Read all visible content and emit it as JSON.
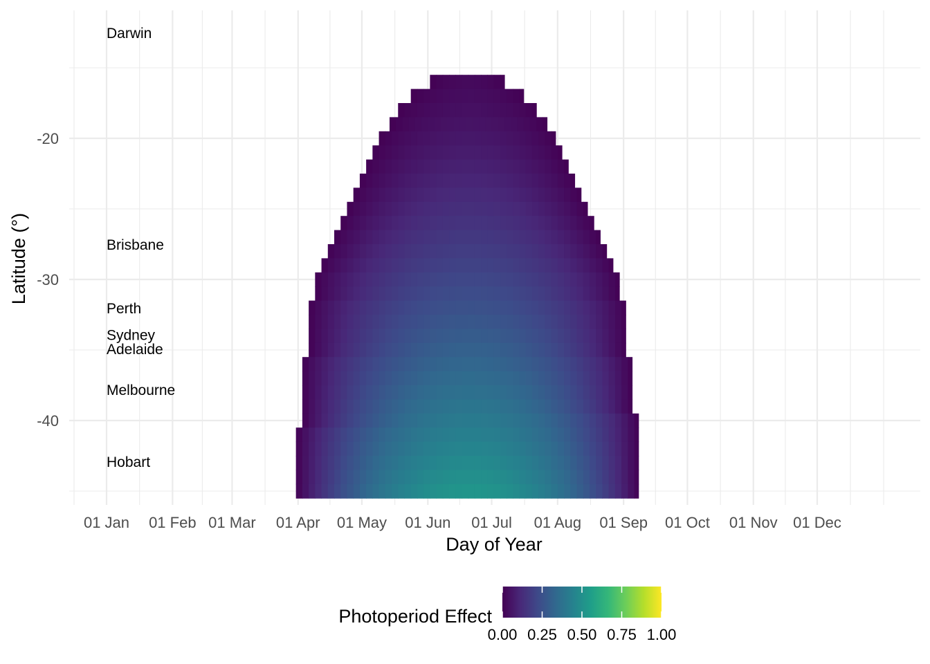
{
  "chart_data": {
    "type": "heatmap",
    "title": "",
    "xlabel": "Day of Year",
    "ylabel": "Latitude (°)",
    "x_tick_labels": [
      "01 Jan",
      "01 Feb",
      "01 Mar",
      "01 Apr",
      "01 May",
      "01 Jun",
      "01 Jul",
      "01 Aug",
      "01 Sep",
      "01 Oct",
      "01 Nov",
      "01 Dec"
    ],
    "x_tick_days": [
      1,
      32,
      60,
      91,
      121,
      152,
      182,
      213,
      244,
      274,
      305,
      335
    ],
    "y_ticks": [
      -20,
      -30,
      -40
    ],
    "y_tick_labels": [
      "-20",
      "-30",
      "-40"
    ],
    "xlim_days": [
      -15,
      380
    ],
    "ylim": [
      -45.5,
      -12.5
    ],
    "grid": true,
    "heatmap": {
      "lat_min": -45,
      "lat_max": -15,
      "lat_step": 1,
      "season_edges": [
        {
          "lat": -16,
          "start_day": 153,
          "end_day": 188
        },
        {
          "lat": -17,
          "start_day": 144,
          "end_day": 197
        },
        {
          "lat": -18,
          "start_day": 138,
          "end_day": 203
        },
        {
          "lat": -19,
          "start_day": 134,
          "end_day": 208
        },
        {
          "lat": -20,
          "start_day": 129,
          "end_day": 212
        },
        {
          "lat": -21,
          "start_day": 126,
          "end_day": 215
        },
        {
          "lat": -22,
          "start_day": 123,
          "end_day": 218
        },
        {
          "lat": -23,
          "start_day": 120,
          "end_day": 221
        },
        {
          "lat": -24,
          "start_day": 117,
          "end_day": 224
        },
        {
          "lat": -25,
          "start_day": 114,
          "end_day": 227
        },
        {
          "lat": -26,
          "start_day": 111,
          "end_day": 230
        },
        {
          "lat": -27,
          "start_day": 108,
          "end_day": 233
        },
        {
          "lat": -28,
          "start_day": 105,
          "end_day": 236
        },
        {
          "lat": -29,
          "start_day": 102,
          "end_day": 239
        },
        {
          "lat": -30,
          "start_day": 99,
          "end_day": 242
        },
        {
          "lat": -31,
          "start_day": 99,
          "end_day": 242
        },
        {
          "lat": -32,
          "start_day": 96,
          "end_day": 245
        },
        {
          "lat": -33,
          "start_day": 96,
          "end_day": 245
        },
        {
          "lat": -34,
          "start_day": 96,
          "end_day": 245
        },
        {
          "lat": -35,
          "start_day": 96,
          "end_day": 245
        },
        {
          "lat": -36,
          "start_day": 93,
          "end_day": 248
        },
        {
          "lat": -37,
          "start_day": 93,
          "end_day": 248
        },
        {
          "lat": -38,
          "start_day": 93,
          "end_day": 248
        },
        {
          "lat": -39,
          "start_day": 93,
          "end_day": 248
        },
        {
          "lat": -40,
          "start_day": 93,
          "end_day": 251
        },
        {
          "lat": -41,
          "start_day": 90,
          "end_day": 251
        },
        {
          "lat": -42,
          "start_day": 90,
          "end_day": 251
        },
        {
          "lat": -43,
          "start_day": 90,
          "end_day": 251
        },
        {
          "lat": -44,
          "start_day": 90,
          "end_day": 251
        },
        {
          "lat": -45,
          "start_day": 90,
          "end_day": 251
        }
      ],
      "peak_day": 172,
      "peak_value_at_lat_min": 0.52,
      "peak_value_at_lat_max": 0.02,
      "value_min": 0.0,
      "value_max": 1.0
    },
    "annotations": [
      {
        "text": "Darwin",
        "lat": -12.5
      },
      {
        "text": "Brisbane",
        "lat": -27.5
      },
      {
        "text": "Perth",
        "lat": -32.0
      },
      {
        "text": "Sydney",
        "lat": -33.9
      },
      {
        "text": "Adelaide",
        "lat": -34.9
      },
      {
        "text": "Melbourne",
        "lat": -37.8
      },
      {
        "text": "Hobart",
        "lat": -42.9
      }
    ],
    "annotation_day": 1,
    "legend": {
      "title": "Photoperiod Effect",
      "tick_labels": [
        "0.00",
        "0.25",
        "0.50",
        "0.75",
        "1.00"
      ],
      "tick_values": [
        0.0,
        0.25,
        0.5,
        0.75,
        1.0
      ],
      "placement": "bottom",
      "colormap": "viridis"
    },
    "colors": {
      "viridis_stops": [
        "#440154",
        "#482878",
        "#3e4989",
        "#31688e",
        "#26828e",
        "#1f9e89",
        "#35b779",
        "#6ece58",
        "#b5de2b",
        "#fde725"
      ]
    }
  }
}
